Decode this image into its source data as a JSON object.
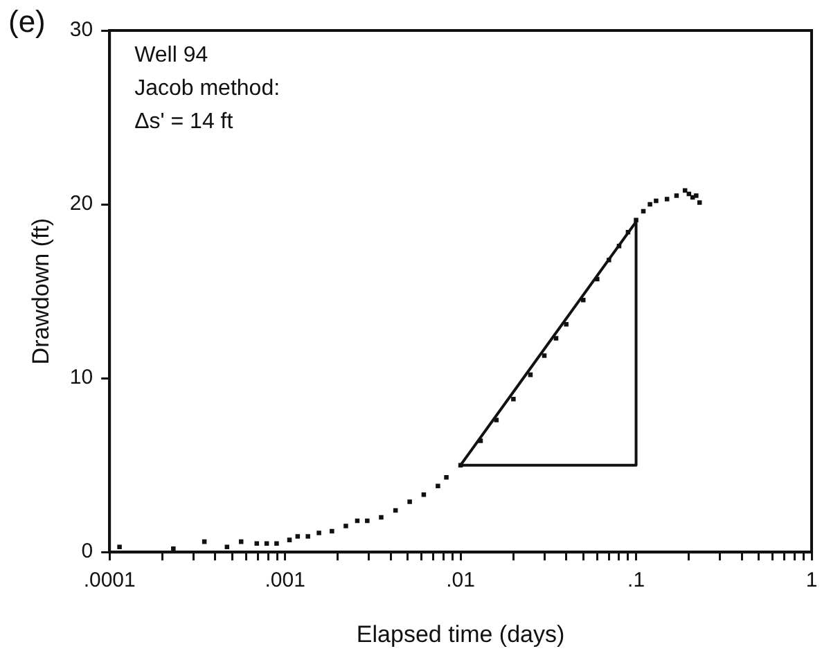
{
  "chart_data": {
    "type": "scatter",
    "title": "(e)",
    "xlabel": "Elapsed time (days)",
    "ylabel": "Drawdown (ft)",
    "annotations": [
      "Well 94",
      "Jacob method:",
      "Δs' = 14 ft"
    ],
    "log": "x",
    "grid": false,
    "legend": false,
    "marker": "square",
    "xlim": [
      0.0001,
      1
    ],
    "xticks": [
      {
        "value": 0.0001,
        "label": ".0001"
      },
      {
        "value": 0.0002,
        "label": null
      },
      {
        "value": 0.0003,
        "label": null
      },
      {
        "value": 0.0004,
        "label": null
      },
      {
        "value": 0.0005,
        "label": null
      },
      {
        "value": 0.0006,
        "label": null
      },
      {
        "value": 0.0007,
        "label": null
      },
      {
        "value": 0.0008,
        "label": null
      },
      {
        "value": 0.0009,
        "label": null
      },
      {
        "value": 0.001,
        "label": ".001"
      },
      {
        "value": 0.002,
        "label": null
      },
      {
        "value": 0.003,
        "label": null
      },
      {
        "value": 0.004,
        "label": null
      },
      {
        "value": 0.005,
        "label": null
      },
      {
        "value": 0.006,
        "label": null
      },
      {
        "value": 0.007,
        "label": null
      },
      {
        "value": 0.008,
        "label": null
      },
      {
        "value": 0.009,
        "label": null
      },
      {
        "value": 0.01,
        "label": ".01"
      },
      {
        "value": 0.02,
        "label": null
      },
      {
        "value": 0.03,
        "label": null
      },
      {
        "value": 0.04,
        "label": null
      },
      {
        "value": 0.05,
        "label": null
      },
      {
        "value": 0.06,
        "label": null
      },
      {
        "value": 0.07,
        "label": null
      },
      {
        "value": 0.08,
        "label": null
      },
      {
        "value": 0.09,
        "label": null
      },
      {
        "value": 0.1,
        "label": ".1"
      },
      {
        "value": 0.2,
        "label": null
      },
      {
        "value": 0.3,
        "label": null
      },
      {
        "value": 0.4,
        "label": null
      },
      {
        "value": 0.5,
        "label": null
      },
      {
        "value": 0.6,
        "label": null
      },
      {
        "value": 0.7,
        "label": null
      },
      {
        "value": 0.8,
        "label": null
      },
      {
        "value": 0.9,
        "label": null
      },
      {
        "value": 1,
        "label": "1"
      }
    ],
    "ylim": [
      0,
      30
    ],
    "yticks": [
      0,
      10,
      20,
      30
    ],
    "series": [
      {
        "color": "#111111",
        "x": [
          0.000114,
          0.000231,
          0.000347,
          0.000467,
          0.000562,
          0.00069,
          0.000786,
          0.000895,
          0.00106,
          0.00118,
          0.00135,
          0.00156,
          0.00185,
          0.00222,
          0.00258,
          0.00294,
          0.00353,
          0.00426,
          0.00513,
          0.00617,
          0.00743,
          0.0083,
          0.01,
          0.013,
          0.016,
          0.02,
          0.025,
          0.03,
          0.035,
          0.04,
          0.05,
          0.06,
          0.07,
          0.08,
          0.09,
          0.1,
          0.11,
          0.12,
          0.13,
          0.15,
          0.17,
          0.19,
          0.2,
          0.21,
          0.22,
          0.23
        ],
        "values": [
          0.3,
          0.2,
          0.6,
          0.3,
          0.6,
          0.5,
          0.5,
          0.5,
          0.7,
          0.9,
          0.9,
          1.1,
          1.2,
          1.5,
          1.8,
          1.8,
          2.0,
          2.4,
          2.9,
          3.3,
          3.8,
          4.3,
          5.0,
          6.4,
          7.6,
          8.8,
          10.2,
          11.3,
          12.3,
          13.1,
          14.5,
          15.7,
          16.8,
          17.6,
          18.4,
          19.1,
          19.6,
          20.0,
          20.2,
          20.3,
          20.5,
          20.8,
          20.6,
          20.4,
          20.5,
          20.1
        ]
      },
      {
        "type": "line",
        "color": "#111111",
        "marker": "none",
        "x": [
          0.01,
          0.1
        ],
        "values": [
          5,
          19
        ]
      },
      {
        "type": "line",
        "color": "#111111",
        "marker": "none",
        "x": [
          0.01,
          0.1,
          0.1
        ],
        "values": [
          5,
          5,
          19
        ]
      }
    ]
  }
}
